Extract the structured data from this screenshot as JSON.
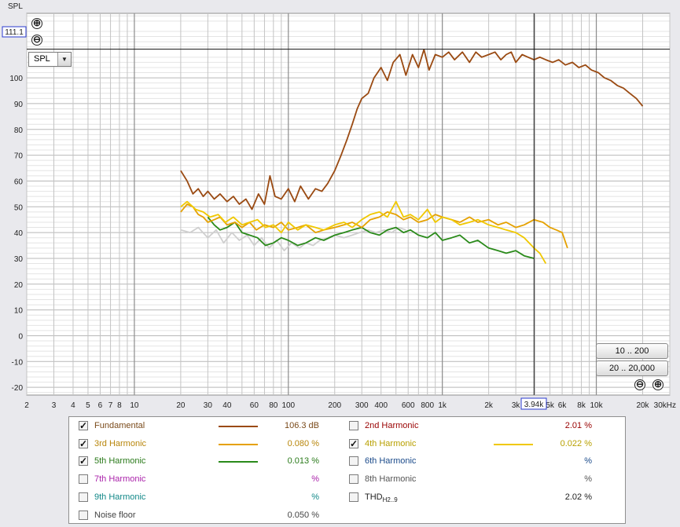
{
  "chart_data": {
    "type": "line",
    "ylabel": "SPL",
    "xscale": "log",
    "xlim": [
      2,
      30000
    ],
    "ylim": [
      -23,
      125
    ],
    "y_ticks": [
      100,
      90,
      80,
      70,
      60,
      50,
      40,
      30,
      20,
      10,
      0,
      -10,
      -20
    ],
    "y_tick_labels": [
      "100",
      "90",
      "80",
      "70",
      "60",
      "50",
      "40",
      "30",
      "20",
      "10",
      "0",
      "-10",
      "-20"
    ],
    "x_ticks": [
      2,
      3,
      4,
      5,
      6,
      7,
      8,
      10,
      20,
      30,
      40,
      60,
      80,
      100,
      200,
      300,
      400,
      600,
      800,
      1000,
      2000,
      3000,
      5000,
      6000,
      8000,
      10000,
      20000,
      30000
    ],
    "x_tick_labels": [
      "2",
      "3",
      "4",
      "5",
      "6",
      "7",
      "8",
      "10",
      "20",
      "30",
      "40",
      "60",
      "80",
      "100",
      "200",
      "300",
      "400",
      "600",
      "800",
      "1k",
      "2k",
      "3k",
      "5k",
      "6k",
      "8k",
      "10k",
      "20k",
      "30kHz"
    ],
    "cursor": {
      "x_label": "3.94k",
      "y_label": "111.1",
      "x": 3940,
      "y": 111.1
    },
    "series": [
      {
        "name": "Fundamental",
        "color": "#9a4a12",
        "x": [
          20,
          22,
          24,
          26,
          28,
          30,
          33,
          36,
          40,
          44,
          48,
          53,
          58,
          64,
          70,
          76,
          82,
          90,
          100,
          110,
          120,
          135,
          150,
          165,
          180,
          200,
          220,
          240,
          260,
          280,
          300,
          330,
          360,
          400,
          440,
          480,
          530,
          580,
          640,
          700,
          760,
          820,
          900,
          1000,
          1100,
          1200,
          1350,
          1500,
          1650,
          1800,
          2000,
          2200,
          2400,
          2600,
          2800,
          3000,
          3300,
          3600,
          3940,
          4300,
          4700,
          5200,
          5700,
          6300,
          7000,
          7700,
          8500,
          9300,
          10300,
          11300,
          12400,
          13700,
          15000,
          16500,
          18200,
          20000
        ],
        "y": [
          64,
          60,
          55,
          57,
          54,
          56,
          53,
          55,
          52,
          54,
          51,
          53,
          49,
          55,
          51,
          62,
          54,
          53,
          57,
          52,
          58,
          53,
          57,
          56,
          59,
          64,
          70,
          76,
          82,
          88,
          92,
          94,
          100,
          104,
          99,
          106,
          109,
          101,
          109,
          104,
          111,
          103,
          109,
          108,
          110,
          107,
          110,
          106,
          110,
          108,
          109,
          110,
          107,
          109,
          110,
          106,
          109,
          108,
          107,
          108,
          107,
          106,
          107,
          105,
          106,
          104,
          105,
          103,
          102,
          100,
          99,
          97,
          96,
          94,
          92,
          89
        ]
      },
      {
        "name": "3rd Harmonic",
        "color": "#e5a100",
        "x": [
          20,
          22,
          24,
          26,
          28,
          30,
          33,
          36,
          40,
          45,
          50,
          56,
          62,
          70,
          80,
          90,
          100,
          115,
          130,
          150,
          170,
          200,
          230,
          260,
          300,
          340,
          390,
          440,
          500,
          560,
          620,
          700,
          800,
          900,
          1000,
          1150,
          1300,
          1500,
          1700,
          2000,
          2300,
          2600,
          3000,
          3400,
          3940,
          4500,
          5000,
          5500,
          6000,
          6500
        ],
        "y": [
          48,
          51,
          50,
          47,
          46,
          44,
          45,
          46,
          43,
          44,
          42,
          44,
          41,
          43,
          42,
          44,
          41,
          42,
          43,
          40,
          41,
          42,
          43,
          44,
          42,
          45,
          46,
          48,
          47,
          45,
          46,
          44,
          45,
          47,
          46,
          45,
          44,
          46,
          44,
          45,
          43,
          44,
          42,
          43,
          45,
          44,
          42,
          41,
          40,
          34
        ]
      },
      {
        "name": "4th Harmonic",
        "color": "#f0c800",
        "x": [
          20,
          22,
          25,
          28,
          31,
          35,
          39,
          44,
          50,
          56,
          63,
          71,
          80,
          90,
          100,
          115,
          130,
          150,
          170,
          200,
          230,
          260,
          300,
          340,
          390,
          440,
          500,
          560,
          620,
          700,
          800,
          900,
          1000,
          1150,
          1300,
          1500,
          1700,
          2000,
          2300,
          2600,
          3000,
          3400,
          3940,
          4300,
          4700
        ],
        "y": [
          50,
          52,
          49,
          48,
          46,
          47,
          44,
          46,
          43,
          44,
          45,
          42,
          43,
          40,
          44,
          41,
          43,
          42,
          41,
          43,
          44,
          42,
          45,
          47,
          48,
          46,
          52,
          46,
          47,
          45,
          49,
          44,
          46,
          45,
          43,
          44,
          45,
          43,
          42,
          41,
          40,
          38,
          34,
          32,
          28
        ]
      },
      {
        "name": "5th Harmonic",
        "color": "#2a8a1a",
        "x": [
          30,
          33,
          36,
          40,
          45,
          50,
          56,
          63,
          71,
          80,
          90,
          100,
          115,
          130,
          150,
          170,
          200,
          230,
          260,
          300,
          340,
          390,
          440,
          500,
          560,
          620,
          700,
          800,
          900,
          1000,
          1150,
          1300,
          1500,
          1700,
          2000,
          2300,
          2600,
          3000,
          3400,
          3940
        ],
        "y": [
          46,
          43,
          41,
          42,
          44,
          40,
          39,
          38,
          35,
          36,
          38,
          37,
          35,
          36,
          38,
          37,
          39,
          40,
          41,
          42,
          40,
          39,
          41,
          42,
          40,
          41,
          39,
          38,
          40,
          37,
          38,
          39,
          36,
          37,
          34,
          33,
          32,
          33,
          31,
          30
        ]
      },
      {
        "name": "Noise floor",
        "color": "#cfcfcf",
        "x": [
          20,
          23,
          26,
          30,
          34,
          38,
          43,
          48,
          54,
          60,
          67,
          75,
          84,
          94,
          105,
          118,
          130,
          145,
          160,
          180,
          200,
          230,
          260,
          290,
          330,
          370,
          420,
          470,
          520,
          580
        ],
        "y": [
          41,
          40,
          42,
          38,
          41,
          36,
          40,
          37,
          39,
          35,
          38,
          34,
          37,
          33,
          36,
          34,
          36,
          35,
          37,
          38,
          39,
          38,
          39,
          40,
          41,
          40,
          41,
          40,
          42,
          41
        ]
      }
    ]
  },
  "controls": {
    "select_value": "SPL",
    "zoom_in": "⊕",
    "zoom_out": "⊖",
    "range_btn_1": "10 .. 200",
    "range_btn_2": "20 .. 20,000"
  },
  "legend": {
    "items": [
      {
        "label": "Fundamental",
        "value": "106.3 dB",
        "checked": true,
        "color": "#7a4a1a",
        "line_color": "#9a4a12"
      },
      {
        "label": "3rd Harmonic",
        "value": "0.080 %",
        "checked": true,
        "color": "#b8860b",
        "line_color": "#e5a100"
      },
      {
        "label": "5th Harmonic",
        "value": "0.013 %",
        "checked": true,
        "color": "#2a7a1a",
        "line_color": "#2a8a1a"
      },
      {
        "label": "7th Harmonic",
        "value": "%",
        "checked": false,
        "color": "#aa22aa",
        "line_color": ""
      },
      {
        "label": "9th Harmonic",
        "value": "%",
        "checked": false,
        "color": "#118888",
        "line_color": ""
      },
      {
        "label": "Noise floor",
        "value": "0.050 %",
        "checked": false,
        "color": "#444444",
        "line_color": ""
      },
      {
        "label": "2nd Harmonic",
        "value": "2.01 %",
        "checked": false,
        "color": "#990000",
        "line_color": ""
      },
      {
        "label": "4th Harmonic",
        "value": "0.022 %",
        "checked": true,
        "color": "#b8a000",
        "line_color": "#f0c800"
      },
      {
        "label": "6th Harmonic",
        "value": "%",
        "checked": false,
        "color": "#1a4a8a",
        "line_color": ""
      },
      {
        "label": "8th Harmonic",
        "value": "%",
        "checked": false,
        "color": "#555555",
        "line_color": ""
      },
      {
        "label": "THD",
        "sub": "H2..9",
        "value": "2.02 %",
        "checked": false,
        "color": "#222222",
        "line_color": ""
      }
    ]
  }
}
